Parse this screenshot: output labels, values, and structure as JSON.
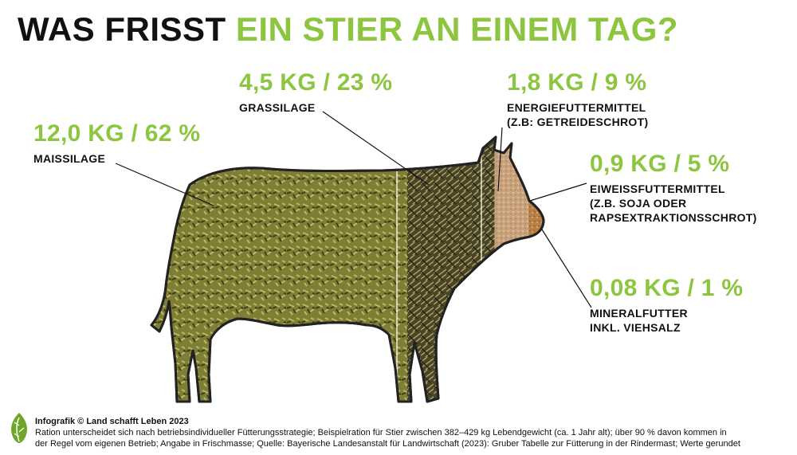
{
  "title": {
    "part1": "WAS FRISST",
    "part2": "EIN STIER AN EINEM TAG?"
  },
  "chart_data": {
    "type": "pictorial",
    "subject": "cow silhouette",
    "segments": [
      {
        "id": "maissilage",
        "kg": 12.0,
        "percent": 62,
        "value_text": "12,0 KG / 62 %",
        "label": [
          "MAISSILAGE"
        ]
      },
      {
        "id": "grassilage",
        "kg": 4.5,
        "percent": 23,
        "value_text": "4,5 KG / 23 %",
        "label": [
          "GRASSILAGE"
        ]
      },
      {
        "id": "energiefuttermittel",
        "kg": 1.8,
        "percent": 9,
        "value_text": "1,8 KG / 9 %",
        "label": [
          "ENERGIEFUTTERMITTEL",
          "(Z.B: GETREIDESCHROT)"
        ]
      },
      {
        "id": "eiweissfuttermittel",
        "kg": 0.9,
        "percent": 5,
        "value_text": "0,9 KG / 5 %",
        "label": [
          "EIWEISSFUTTERMITTEL",
          "(Z.B. SOJA ODER",
          "RAPSEXTRAKTIONSSCHROT)"
        ]
      },
      {
        "id": "mineralfutter",
        "kg": 0.08,
        "percent": 1,
        "value_text": "0,08 KG / 1 %",
        "label": [
          "MINERALFUTTER",
          "INKL. VIEHSALZ"
        ]
      }
    ]
  },
  "colors": {
    "accent": "#8cc63f",
    "maissilage": "#8a8a3a",
    "grassilage": "#5a5530",
    "energiefuttermittel": "#c9a27c",
    "eiweissfuttermittel": "#c08a52",
    "mineralfutter": "#cfcfcf",
    "outline": "#222222"
  },
  "footer": {
    "credit": "Infografik © Land schafft Leben 2023",
    "line1": "Ration unterscheidet sich nach betriebsindividueller Fütterungsstrategie; Beispielration für Stier zwischen 382–429 kg Lebendgewicht (ca. 1 Jahr alt); über 90 % davon kommen in",
    "line2": "der Regel vom eigenen Betrieb; Angabe in Frischmasse; Quelle: Bayerische Landesanstalt für Landwirtschaft (2023): Gruber Tabelle zur Fütterung in der Rindermast; Werte gerundet"
  },
  "logo": {
    "icon": "leaf-logo-icon"
  }
}
